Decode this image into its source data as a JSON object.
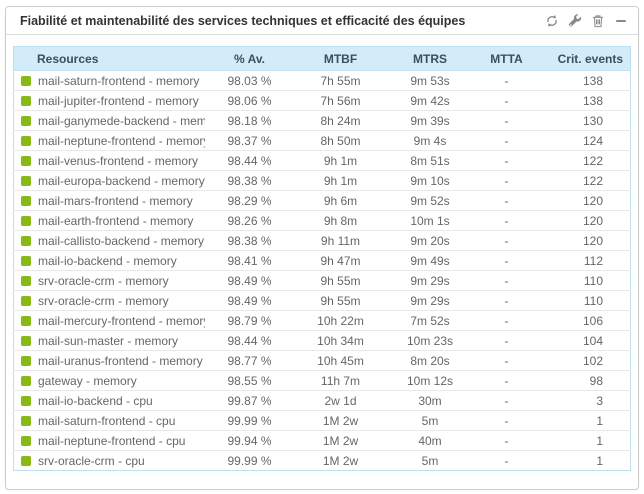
{
  "widget": {
    "title": "Fiabilité et maintenabilité des services techniques et efficacité des équipes",
    "toolbar_icons": [
      {
        "name": "refresh-icon"
      },
      {
        "name": "wrench-icon"
      },
      {
        "name": "trash-icon"
      },
      {
        "name": "collapse-icon"
      }
    ]
  },
  "colors": {
    "status_ok": "#88b917",
    "header_bg": "#d3ecfa",
    "table_border": "#bcdff2",
    "icon_gray": "#8a8a84"
  },
  "table": {
    "columns": [
      "Resources",
      "% Av.",
      "MTBF",
      "MTRS",
      "MTTA",
      "Crit. events"
    ],
    "rows": [
      {
        "status": "ok",
        "resource": "mail-saturn-frontend - memory",
        "availability": "98.03 %",
        "mtbf": "7h 55m",
        "mtrs": "9m 53s",
        "mtta": "-",
        "crit_events": "138"
      },
      {
        "status": "ok",
        "resource": "mail-jupiter-frontend - memory",
        "availability": "98.06 %",
        "mtbf": "7h 56m",
        "mtrs": "9m 42s",
        "mtta": "-",
        "crit_events": "138"
      },
      {
        "status": "ok",
        "resource": "mail-ganymede-backend - memory",
        "availability": "98.18 %",
        "mtbf": "8h 24m",
        "mtrs": "9m 39s",
        "mtta": "-",
        "crit_events": "130"
      },
      {
        "status": "ok",
        "resource": "mail-neptune-frontend - memory",
        "availability": "98.37 %",
        "mtbf": "8h 50m",
        "mtrs": "9m 4s",
        "mtta": "-",
        "crit_events": "124"
      },
      {
        "status": "ok",
        "resource": "mail-venus-frontend - memory",
        "availability": "98.44 %",
        "mtbf": "9h 1m",
        "mtrs": "8m 51s",
        "mtta": "-",
        "crit_events": "122"
      },
      {
        "status": "ok",
        "resource": "mail-europa-backend - memory",
        "availability": "98.38 %",
        "mtbf": "9h 1m",
        "mtrs": "9m 10s",
        "mtta": "-",
        "crit_events": "122"
      },
      {
        "status": "ok",
        "resource": "mail-mars-frontend - memory",
        "availability": "98.29 %",
        "mtbf": "9h 6m",
        "mtrs": "9m 52s",
        "mtta": "-",
        "crit_events": "120"
      },
      {
        "status": "ok",
        "resource": "mail-earth-frontend - memory",
        "availability": "98.26 %",
        "mtbf": "9h 8m",
        "mtrs": "10m 1s",
        "mtta": "-",
        "crit_events": "120"
      },
      {
        "status": "ok",
        "resource": "mail-callisto-backend - memory",
        "availability": "98.38 %",
        "mtbf": "9h 11m",
        "mtrs": "9m 20s",
        "mtta": "-",
        "crit_events": "120"
      },
      {
        "status": "ok",
        "resource": "mail-io-backend - memory",
        "availability": "98.41 %",
        "mtbf": "9h 47m",
        "mtrs": "9m 49s",
        "mtta": "-",
        "crit_events": "112"
      },
      {
        "status": "ok",
        "resource": "srv-oracle-crm - memory",
        "availability": "98.49 %",
        "mtbf": "9h 55m",
        "mtrs": "9m 29s",
        "mtta": "-",
        "crit_events": "110"
      },
      {
        "status": "ok",
        "resource": "srv-oracle-crm - memory",
        "availability": "98.49 %",
        "mtbf": "9h 55m",
        "mtrs": "9m 29s",
        "mtta": "-",
        "crit_events": "110"
      },
      {
        "status": "ok",
        "resource": "mail-mercury-frontend - memory",
        "availability": "98.79 %",
        "mtbf": "10h 22m",
        "mtrs": "7m 52s",
        "mtta": "-",
        "crit_events": "106"
      },
      {
        "status": "ok",
        "resource": "mail-sun-master - memory",
        "availability": "98.44 %",
        "mtbf": "10h 34m",
        "mtrs": "10m 23s",
        "mtta": "-",
        "crit_events": "104"
      },
      {
        "status": "ok",
        "resource": "mail-uranus-frontend - memory",
        "availability": "98.77 %",
        "mtbf": "10h 45m",
        "mtrs": "8m 20s",
        "mtta": "-",
        "crit_events": "102"
      },
      {
        "status": "ok",
        "resource": "gateway - memory",
        "availability": "98.55 %",
        "mtbf": "11h 7m",
        "mtrs": "10m 12s",
        "mtta": "-",
        "crit_events": "98"
      },
      {
        "status": "ok",
        "resource": "mail-io-backend - cpu",
        "availability": "99.87 %",
        "mtbf": "2w 1d",
        "mtrs": "30m",
        "mtta": "-",
        "crit_events": "3"
      },
      {
        "status": "ok",
        "resource": "mail-saturn-frontend - cpu",
        "availability": "99.99 %",
        "mtbf": "1M 2w",
        "mtrs": "5m",
        "mtta": "-",
        "crit_events": "1"
      },
      {
        "status": "ok",
        "resource": "mail-neptune-frontend - cpu",
        "availability": "99.94 %",
        "mtbf": "1M 2w",
        "mtrs": "40m",
        "mtta": "-",
        "crit_events": "1"
      },
      {
        "status": "ok",
        "resource": "srv-oracle-crm - cpu",
        "availability": "99.99 %",
        "mtbf": "1M 2w",
        "mtrs": "5m",
        "mtta": "-",
        "crit_events": "1"
      }
    ]
  }
}
